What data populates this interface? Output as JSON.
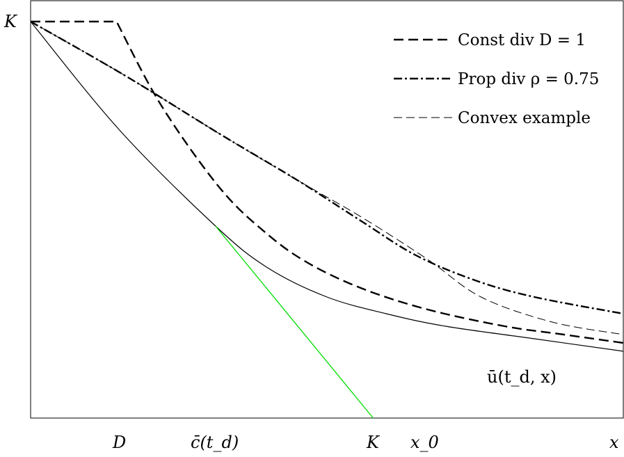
{
  "chart_data": {
    "type": "line",
    "title": "",
    "xlabel": "x",
    "ylabel": "",
    "xlim": [
      0,
      10
    ],
    "ylim": [
      0,
      1
    ],
    "grid": false,
    "legend_position": "top-right",
    "tick_labels": {
      "x": [
        {
          "label": "D",
          "value": 1.45
        },
        {
          "label": "c̄(t_d)",
          "value": 3.12
        },
        {
          "label": "K",
          "value": 5.78
        },
        {
          "label": "x_0",
          "value": 6.8
        },
        {
          "label": "x",
          "value": 10.0
        }
      ],
      "y": [
        {
          "label": "K",
          "value": 0.95
        }
      ]
    },
    "series": [
      {
        "name": "Const div D = 1",
        "style": "dashed",
        "stroke_width": 2.4,
        "color": "#000000",
        "points": [
          [
            0,
            0.95
          ],
          [
            1.45,
            0.95
          ],
          [
            2.2,
            0.75
          ],
          [
            3.2,
            0.55
          ],
          [
            4.0,
            0.44
          ],
          [
            4.7,
            0.37
          ],
          [
            5.6,
            0.31
          ],
          [
            6.7,
            0.26
          ],
          [
            8.0,
            0.22
          ],
          [
            9.0,
            0.2
          ],
          [
            10.0,
            0.18
          ]
        ]
      },
      {
        "name": "Prop div ρ = 0.75",
        "style": "dashdot",
        "stroke_width": 2.4,
        "color": "#000000",
        "points": [
          [
            0,
            0.95
          ],
          [
            1.6,
            0.82
          ],
          [
            3.2,
            0.68
          ],
          [
            4.5,
            0.57
          ],
          [
            5.6,
            0.47
          ],
          [
            6.5,
            0.39
          ],
          [
            7.5,
            0.33
          ],
          [
            8.5,
            0.29
          ],
          [
            10.0,
            0.25
          ]
        ]
      },
      {
        "name": "Convex example",
        "style": "dashed-thin",
        "stroke_width": 1.0,
        "color": "#000000",
        "points": [
          [
            0,
            0.95
          ],
          [
            1.6,
            0.82
          ],
          [
            3.2,
            0.68
          ],
          [
            4.5,
            0.57
          ],
          [
            5.6,
            0.48
          ],
          [
            6.7,
            0.38
          ],
          [
            7.6,
            0.29
          ],
          [
            8.8,
            0.23
          ],
          [
            10.0,
            0.2
          ]
        ]
      },
      {
        "name": "",
        "label": "ū(t_d, x)",
        "style": "solid",
        "stroke_width": 1.2,
        "color": "#000000",
        "points": [
          [
            0,
            0.95
          ],
          [
            1.5,
            0.69
          ],
          [
            3.12,
            0.46
          ],
          [
            4.0,
            0.36
          ],
          [
            5.0,
            0.29
          ],
          [
            6.0,
            0.25
          ],
          [
            7.0,
            0.22
          ],
          [
            8.5,
            0.19
          ],
          [
            10.0,
            0.16
          ]
        ]
      },
      {
        "name": "",
        "style": "solid",
        "stroke_width": 1.3,
        "color": "#00dd00",
        "points": [
          [
            3.12,
            0.46
          ],
          [
            5.78,
            0.0
          ]
        ]
      }
    ],
    "annotations": [
      {
        "text": "ū(t_d, x)",
        "x": 8.2,
        "y": 0.115
      }
    ]
  }
}
